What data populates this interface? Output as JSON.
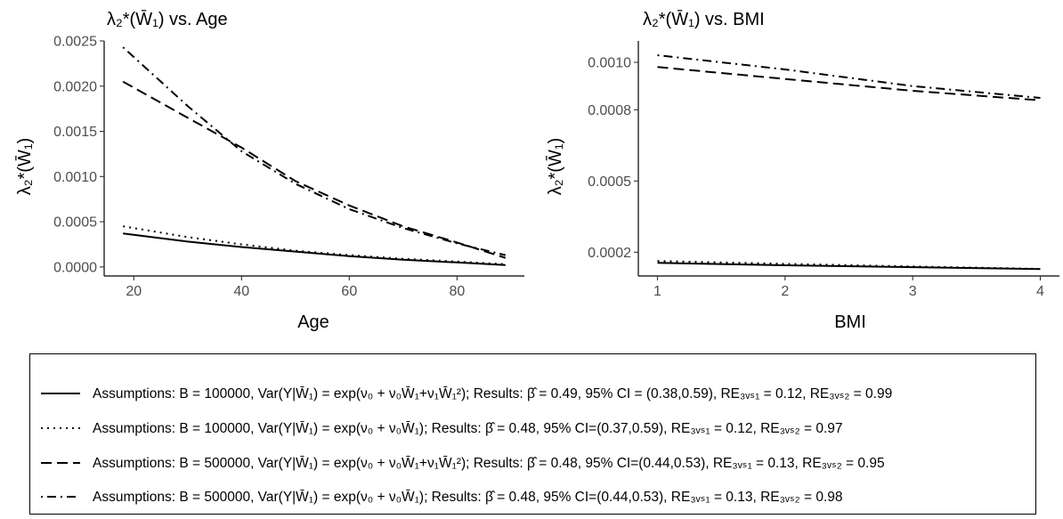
{
  "chart_data": [
    {
      "type": "line",
      "title": "λ₂*(W̄₁) vs. Age",
      "xlabel": "Age",
      "ylabel": "λ₂*(W̄₁)",
      "xlim": [
        14.5,
        92.5
      ],
      "ylim": [
        -0.0001,
        0.0025
      ],
      "xticks": [
        20,
        40,
        60,
        80
      ],
      "yticks": [
        "0.0000",
        "0.0005",
        "0.0010",
        "0.0015",
        "0.0020",
        "0.0025"
      ],
      "yticks_values": [
        0,
        0.0005,
        0.001,
        0.0015,
        0.002,
        0.0025
      ],
      "grid": false,
      "series": [
        {
          "style": "solid",
          "x": [
            18,
            30,
            40,
            50,
            60,
            70,
            80,
            89
          ],
          "y": [
            0.00037,
            0.00028,
            0.00022,
            0.00017,
            0.00012,
            8e-05,
            5e-05,
            2e-05
          ]
        },
        {
          "style": "dotted",
          "x": [
            18,
            30,
            40,
            50,
            60,
            70,
            80,
            89
          ],
          "y": [
            0.00045,
            0.00033,
            0.00025,
            0.00018,
            0.00013,
            9e-05,
            6e-05,
            3e-05
          ]
        },
        {
          "style": "dashed",
          "x": [
            18,
            30,
            40,
            50,
            60,
            70,
            80,
            89
          ],
          "y": [
            0.00205,
            0.00165,
            0.00132,
            0.00095,
            0.00068,
            0.00045,
            0.00027,
            0.0001
          ]
        },
        {
          "style": "dotdash",
          "x": [
            18,
            30,
            40,
            50,
            60,
            70,
            80,
            89
          ],
          "y": [
            0.00243,
            0.00178,
            0.00128,
            0.00092,
            0.00064,
            0.00043,
            0.00026,
            0.00013
          ]
        }
      ]
    },
    {
      "type": "line",
      "title": "λ₂*(W̄₁) vs. BMI",
      "xlabel": "BMI",
      "ylabel": "λ₂*(W̄₁)",
      "xlim": [
        0.85,
        4.15
      ],
      "ylim": [
        0.0001,
        0.00109
      ],
      "xticks": [
        1,
        2,
        3,
        4
      ],
      "yticks": [
        "0.0002",
        "0.0005",
        "0.0008",
        "0.0010"
      ],
      "yticks_values": [
        0.0002,
        0.0005,
        0.0008,
        0.001
      ],
      "grid": false,
      "series": [
        {
          "style": "solid",
          "x": [
            1,
            2,
            3,
            4
          ],
          "y": [
            0.000155,
            0.000145,
            0.000137,
            0.000129
          ]
        },
        {
          "style": "dotted",
          "x": [
            1,
            2,
            3,
            4
          ],
          "y": [
            0.000163,
            0.000151,
            0.00014,
            0.00013
          ]
        },
        {
          "style": "dashed",
          "x": [
            1,
            2,
            3,
            4
          ],
          "y": [
            0.00098,
            0.00093,
            0.00088,
            0.00084
          ]
        },
        {
          "style": "dotdash",
          "x": [
            1,
            2,
            3,
            4
          ],
          "y": [
            0.00103,
            0.00097,
            0.0009,
            0.00085
          ]
        }
      ]
    }
  ],
  "legend": {
    "items": [
      {
        "style": "solid",
        "text": "Assumptions: B = 100000, Var(Y|W̄₁) = exp(ν₀ + ν₀W̄₁+ν₁W̄₁²); Results: β̂ = 0.49, 95% CI = (0.38,0.59), RE₃ᵥₛ₁ = 0.12, RE₃ᵥₛ₂ = 0.99"
      },
      {
        "style": "dotted",
        "text": "Assumptions: B = 100000, Var(Y|W̄₁) = exp(ν₀ + ν₀W̄₁); Results: β̂ = 0.48, 95% CI=(0.37,0.59), RE₃ᵥₛ₁ = 0.12, RE₃ᵥₛ₂ = 0.97"
      },
      {
        "style": "dashed",
        "text": "Assumptions: B = 500000, Var(Y|W̄₁) = exp(ν₀ + ν₀W̄₁+ν₁W̄₁²); Results: β̂ = 0.48, 95% CI=(0.44,0.53), RE₃ᵥₛ₁ = 0.13, RE₃ᵥₛ₂ = 0.95"
      },
      {
        "style": "dotdash",
        "text": "Assumptions: B = 500000, Var(Y|W̄₁) = exp(ν₀ + ν₀W̄₁); Results: β̂ = 0.48, 95% CI=(0.44,0.53), RE₃ᵥₛ₁ = 0.13, RE₃ᵥₛ₂ = 0.98"
      }
    ]
  }
}
